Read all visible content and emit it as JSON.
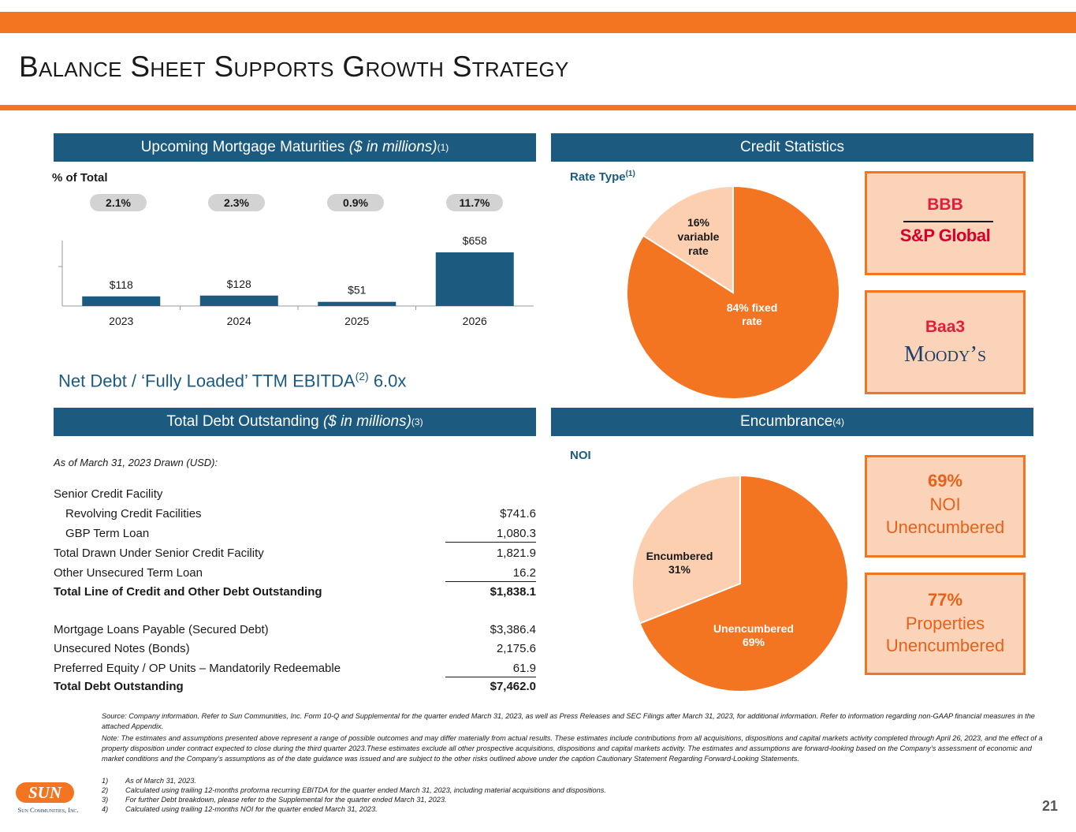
{
  "title": "Balance Sheet Supports Growth Strategy",
  "colors": {
    "accent": "#f47521",
    "navy": "#1c5a7f",
    "light_orange": "#fbd3b8"
  },
  "maturities": {
    "header_main": "Upcoming Mortgage Maturities ",
    "header_italic": "($ in millions)",
    "header_sup": "(1)",
    "pct_label": "% of Total",
    "pcts": [
      "2.1%",
      "2.3%",
      "0.9%",
      "11.7%"
    ]
  },
  "chart_data": [
    {
      "type": "bar",
      "title": "Upcoming Mortgage Maturities ($ in millions)",
      "categories": [
        "2023",
        "2024",
        "2025",
        "2026"
      ],
      "values": [
        118,
        128,
        51,
        658
      ],
      "labels": [
        "$118",
        "$128",
        "$51",
        "$658"
      ],
      "ylim": [
        0,
        800
      ]
    },
    {
      "type": "pie",
      "title": "Rate Type",
      "slices": [
        {
          "name": "84% fixed rate",
          "value": 84
        },
        {
          "name": "16% variable rate",
          "value": 16
        }
      ]
    },
    {
      "type": "pie",
      "title": "NOI",
      "slices": [
        {
          "name": "Unencumbered 69%",
          "value": 69
        },
        {
          "name": "Encumbered 31%",
          "value": 31
        }
      ]
    }
  ],
  "net_debt": {
    "text": "Net Debt / ‘Fully Loaded’ TTM EBITDA",
    "sup": "(2)",
    "value": " 6.0x"
  },
  "credit": {
    "header": "Credit Statistics",
    "rate_type_label": "Rate Type",
    "rate_type_sup": "(1)",
    "fixed_label_1": "84% fixed",
    "fixed_label_2": "rate",
    "var_label_1": "16%",
    "var_label_2": "variable",
    "var_label_3": "rate",
    "sp_rating": "BBB",
    "sp_name": "S&P Global",
    "moodys_rating": "Baa3",
    "moodys_name": "Moody’s"
  },
  "total_debt": {
    "header_main": "Total Debt Outstanding ",
    "header_italic": "($ in millions)",
    "header_sup": "(3)",
    "asof": "As of March 31, 2023 Drawn (USD):",
    "rows": [
      {
        "label": "Senior Credit Facility",
        "value": ""
      },
      {
        "label": "Revolving Credit Facilities",
        "value": "$741.6"
      },
      {
        "label": "GBP Term Loan",
        "value": "1,080.3"
      },
      {
        "label": "Total Drawn Under Senior Credit Facility",
        "value": "1,821.9"
      },
      {
        "label": "Other Unsecured Term Loan",
        "value": "16.2"
      },
      {
        "label": "Total Line of Credit and Other Debt Outstanding",
        "value": "$1,838.1"
      },
      {
        "label": "Mortgage Loans Payable (Secured Debt)",
        "value": "$3,386.4"
      },
      {
        "label": "Unsecured Notes (Bonds)",
        "value": "2,175.6"
      },
      {
        "label": "Preferred Equity / OP Units – Mandatorily Redeemable",
        "value": "61.9"
      },
      {
        "label": "Total Debt Outstanding",
        "value": "$7,462.0"
      }
    ]
  },
  "encumbrance": {
    "header": "Encumbrance",
    "header_sup": "(4)",
    "noi_label": "NOI",
    "unenc_label_1": "Unencumbered",
    "unenc_label_2": "69%",
    "enc_label_1": "Encumbered",
    "enc_label_2": "31%",
    "box1_pct": "69%",
    "box1_l1": "NOI",
    "box1_l2": "Unencumbered",
    "box2_pct": "77%",
    "box2_l1": "Properties",
    "box2_l2": "Unencumbered"
  },
  "footer": {
    "source": "Source: Company information. Refer to Sun Communities, Inc. Form 10-Q and Supplemental for the quarter ended March 31, 2023, as well as Press Releases and SEC Filings after March 31, 2023, for additional information. Refer to information regarding non-GAAP financial measures in the attached Appendix.",
    "note": "Note: The estimates and assumptions presented above represent a range of possible outcomes and may differ materially from actual results. These estimates include contributions from all acquisitions, dispositions and capital markets activity completed through April 26, 2023, and the effect of a property disposition under contract expected to close during the third quarter 2023.These estimates exclude all other prospective acquisitions, dispositions and capital markets activity. The estimates and assumptions are forward-looking based on the Company’s assessment of economic and market conditions and the Company’s assumptions as of the date guidance was issued and are subject to the other risks outlined above under the caption Cautionary Statement Regarding Forward-Looking Statements.",
    "fn1_num": "1)",
    "fn1": "As of March 31, 2023.",
    "fn2_num": "2)",
    "fn2": "Calculated using trailing 12-months proforma recurring EBITDA for the quarter ended March 31, 2023, including material acquisitions and dispositions.",
    "fn3_num": "3)",
    "fn3": "For further Debt breakdown, please refer to the Supplemental for the quarter ended March 31, 2023.",
    "fn4_num": "4)",
    "fn4": "Calculated using trailing 12-months NOI for the quarter ended March 31, 2023."
  },
  "logo": {
    "mark": "SUN",
    "company": "Sun Communities, Inc."
  },
  "page_number": "21"
}
